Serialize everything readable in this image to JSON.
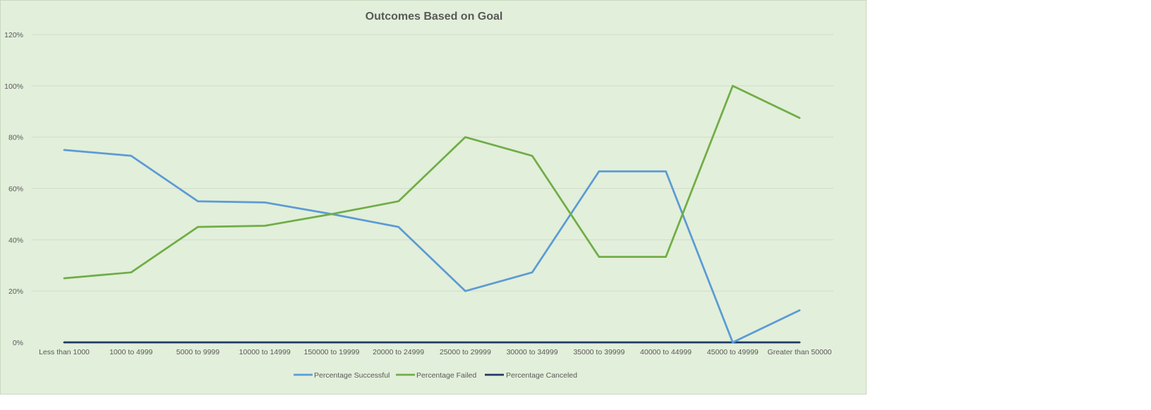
{
  "chart_data": {
    "type": "line",
    "title": "Outcomes Based on Goal",
    "xlabel": "",
    "ylabel": "",
    "categories": [
      "Less than 1000",
      "1000 to 4999",
      "5000 to 9999",
      "10000 to 14999",
      "150000 to 19999",
      "20000 to 24999",
      "25000 to 29999",
      "30000 to 34999",
      "35000 to 39999",
      "40000 to 44999",
      "45000 to 49999",
      "Greater than 50000"
    ],
    "ylim": [
      0,
      1.2
    ],
    "yticks": [
      0,
      0.2,
      0.4,
      0.6,
      0.8,
      1.0,
      1.2
    ],
    "ytick_labels": [
      "0%",
      "20%",
      "40%",
      "60%",
      "80%",
      "100%",
      "120%"
    ],
    "grid": true,
    "legend_position": "bottom",
    "series": [
      {
        "name": "Percentage Successful",
        "color": "#5b9bd5",
        "values": [
          0.75,
          0.7273,
          0.55,
          0.5455,
          0.5,
          0.45,
          0.2,
          0.2727,
          0.6667,
          0.6667,
          0.0,
          0.125
        ]
      },
      {
        "name": "Percentage Failed",
        "color": "#70ad47",
        "values": [
          0.25,
          0.2727,
          0.45,
          0.4545,
          0.5,
          0.55,
          0.8,
          0.7273,
          0.3333,
          0.3333,
          1.0,
          0.875
        ]
      },
      {
        "name": "Percentage Canceled",
        "color": "#203864",
        "values": [
          0,
          0,
          0,
          0,
          0,
          0,
          0,
          0,
          0,
          0,
          0,
          0
        ]
      }
    ]
  }
}
